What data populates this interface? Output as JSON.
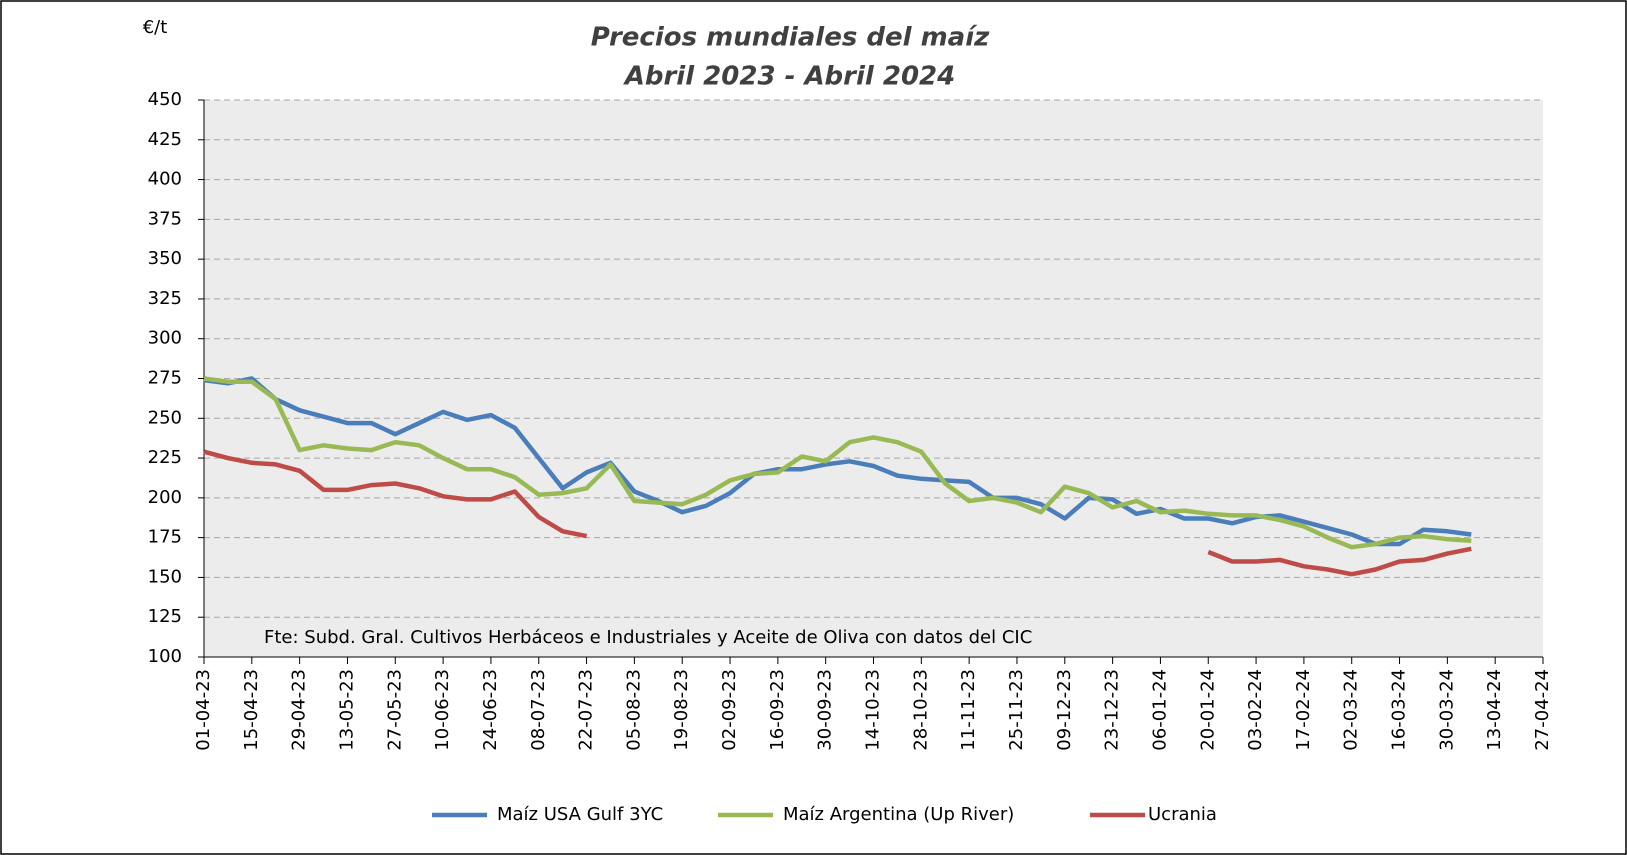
{
  "chart_data": {
    "type": "line",
    "title": "Precios mundiales del maíz",
    "subtitle": "Abril 2023 - Abril 2024",
    "y_label": "€/t",
    "annotation": "Fte: Subd. Gral. Cultivos Herbáceos e Industriales y Aceite de Oliva con datos del CIC",
    "x": [
      "01-04-23",
      "08-04-23",
      "15-04-23",
      "22-04-23",
      "29-04-23",
      "06-05-23",
      "13-05-23",
      "20-05-23",
      "27-05-23",
      "03-06-23",
      "10-06-23",
      "17-06-23",
      "24-06-23",
      "01-07-23",
      "08-07-23",
      "15-07-23",
      "22-07-23",
      "29-07-23",
      "05-08-23",
      "12-08-23",
      "19-08-23",
      "26-08-23",
      "02-09-23",
      "09-09-23",
      "16-09-23",
      "23-09-23",
      "30-09-23",
      "07-10-23",
      "14-10-23",
      "21-10-23",
      "28-10-23",
      "04-11-23",
      "11-11-23",
      "18-11-23",
      "25-11-23",
      "02-12-23",
      "09-12-23",
      "16-12-23",
      "23-12-23",
      "30-12-23",
      "06-01-24",
      "13-01-24",
      "20-01-24",
      "27-01-24",
      "03-02-24",
      "10-02-24",
      "17-02-24",
      "24-02-24",
      "02-03-24",
      "09-03-24",
      "16-03-24",
      "23-03-24",
      "30-03-24",
      "06-04-24"
    ],
    "series": [
      {
        "name": "Maíz USA Gulf 3YC",
        "color": "#4a7ebb",
        "values": [
          274,
          272,
          275,
          262,
          255,
          251,
          247,
          247,
          240,
          247,
          254,
          249,
          252,
          244,
          225,
          206,
          216,
          222,
          204,
          198,
          191,
          195,
          203,
          215,
          218,
          218,
          221,
          223,
          220,
          214,
          212,
          211,
          210,
          200,
          200,
          196,
          187,
          200,
          199,
          190,
          193,
          187,
          187,
          184,
          188,
          189,
          185,
          181,
          177,
          171,
          171,
          180,
          179,
          177
        ]
      },
      {
        "name": "Maíz Argentina (Up River)",
        "color": "#98b954",
        "values": [
          275,
          273,
          273,
          262,
          230,
          233,
          231,
          230,
          235,
          233,
          225,
          218,
          218,
          213,
          202,
          203,
          206,
          221,
          198,
          197,
          196,
          202,
          211,
          215,
          216,
          226,
          223,
          235,
          238,
          235,
          229,
          209,
          198,
          200,
          197,
          191,
          207,
          203,
          194,
          198,
          191,
          192,
          190,
          189,
          189,
          186,
          182,
          175,
          169,
          171,
          175,
          176,
          174,
          173
        ]
      },
      {
        "name": "Ucrania",
        "color": "#be4b48",
        "values": [
          229,
          225,
          222,
          221,
          217,
          205,
          205,
          208,
          209,
          206,
          201,
          199,
          199,
          204,
          188,
          179,
          176,
          null,
          null,
          null,
          null,
          null,
          null,
          null,
          null,
          null,
          null,
          null,
          null,
          null,
          null,
          null,
          null,
          null,
          null,
          null,
          null,
          null,
          null,
          null,
          null,
          null,
          166,
          160,
          160,
          161,
          157,
          155,
          152,
          155,
          160,
          161,
          165,
          168
        ]
      }
    ],
    "xlim": [
      "01-04-23",
      "27-04-24"
    ],
    "xticks": [
      "01-04-23",
      "15-04-23",
      "29-04-23",
      "13-05-23",
      "27-05-23",
      "10-06-23",
      "24-06-23",
      "08-07-23",
      "22-07-23",
      "05-08-23",
      "19-08-23",
      "02-09-23",
      "16-09-23",
      "30-09-23",
      "14-10-23",
      "28-10-23",
      "11-11-23",
      "25-11-23",
      "09-12-23",
      "23-12-23",
      "06-01-24",
      "20-01-24",
      "03-02-24",
      "17-02-24",
      "02-03-24",
      "16-03-24",
      "30-03-24",
      "13-04-24",
      "27-04-24"
    ],
    "ylim": [
      100,
      450
    ],
    "yticks": [
      100,
      125,
      150,
      175,
      200,
      225,
      250,
      275,
      300,
      325,
      350,
      375,
      400,
      425,
      450
    ],
    "grid": true,
    "legend": "bottom"
  }
}
